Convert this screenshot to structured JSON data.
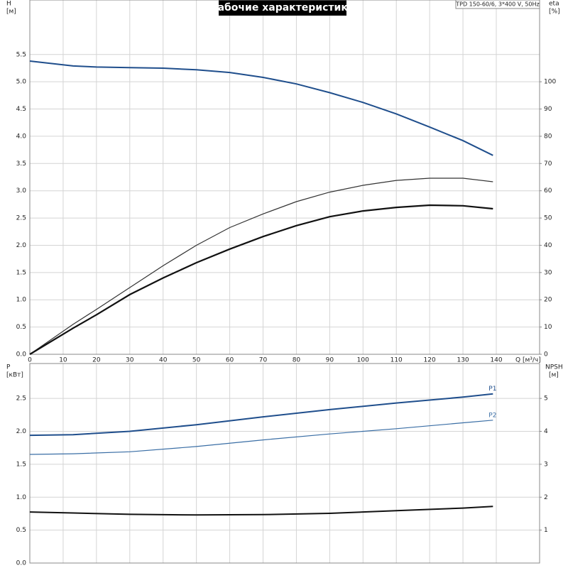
{
  "chart_data": [
    {
      "type": "line",
      "title": "Рабочие характеристики",
      "model": "TPD 150-60/6, 3*400 V, 50Hz",
      "y_label": "H",
      "y_unit": "[м]",
      "y2_label": "eta",
      "y2_unit": "[%]",
      "x_label": "Q [м³/ч]",
      "x": [
        0,
        13,
        20,
        30,
        40,
        50,
        60,
        70,
        80,
        90,
        100,
        110,
        120,
        130,
        139
      ],
      "xlim": [
        0,
        153
      ],
      "xticks": [
        0,
        10,
        20,
        30,
        40,
        50,
        60,
        70,
        80,
        90,
        100,
        110,
        120,
        130,
        140
      ],
      "ylim": [
        0,
        6.5
      ],
      "yticks": [
        {
          "value": 0,
          "label": "0.0"
        },
        0.5,
        {
          "value": 1,
          "label": "1.0"
        },
        1.5,
        {
          "value": 2,
          "label": "2.0"
        },
        2.5,
        {
          "value": 3,
          "label": "3.0"
        },
        3.5,
        {
          "value": 4,
          "label": "4.0"
        },
        4.5,
        {
          "value": 5,
          "label": "5.0"
        },
        5.5
      ],
      "y2lim": [
        0,
        130
      ],
      "y2ticks": [
        0,
        10,
        20,
        30,
        40,
        50,
        60,
        70,
        80,
        90,
        100
      ],
      "grid": true,
      "series": [
        {
          "color": "#1f4e8c",
          "line_width": 2,
          "values": [
            5.38,
            5.29,
            5.27,
            5.26,
            5.25,
            5.22,
            5.17,
            5.08,
            4.96,
            4.8,
            4.62,
            4.41,
            4.17,
            3.92,
            3.65
          ]
        },
        {
          "color": "#333333",
          "line_width": 1.2,
          "axis": "y2",
          "values": [
            0,
            11,
            16.5,
            24.5,
            32.5,
            40,
            46.5,
            51.5,
            56,
            59.5,
            62,
            63.8,
            64.6,
            64.6,
            63.3
          ]
        },
        {
          "color": "#111111",
          "line_width": 2.2,
          "axis": "y2",
          "values": [
            0,
            9.6,
            14.5,
            21.9,
            28,
            33.6,
            38.6,
            43.2,
            47.2,
            50.5,
            52.6,
            53.9,
            54.7,
            54.5,
            53.4
          ]
        }
      ]
    },
    {
      "type": "line",
      "y_label": "P",
      "y_unit": "[кВт]",
      "y2_label": "NPSH",
      "y2_unit": "[м]",
      "x": [
        0,
        13,
        30,
        50,
        70,
        90,
        110,
        130,
        139
      ],
      "xlim": [
        0,
        153
      ],
      "xticks": [
        0,
        10,
        20,
        30,
        40,
        50,
        60,
        70,
        80,
        90,
        100,
        110,
        120,
        130,
        140
      ],
      "ylim": [
        0,
        3.03
      ],
      "yticks": [
        {
          "value": 0,
          "label": "0.0"
        },
        0.5,
        {
          "value": 1,
          "label": "1.0"
        },
        1.5,
        {
          "value": 2,
          "label": "2.0"
        },
        2.5
      ],
      "y2lim": [
        0,
        6.06
      ],
      "y2ticks": [
        1,
        2,
        3,
        4,
        5
      ],
      "grid": true,
      "series": [
        {
          "name": "P1",
          "color": "#1f4e8c",
          "line_width": 2,
          "values": [
            1.94,
            1.95,
            2.0,
            2.1,
            2.22,
            2.33,
            2.43,
            2.52,
            2.57
          ]
        },
        {
          "name": "P2",
          "color": "#3a6ea5",
          "line_width": 1.2,
          "values": [
            1.65,
            1.66,
            1.69,
            1.77,
            1.87,
            1.96,
            2.04,
            2.13,
            2.17
          ]
        },
        {
          "color": "#111111",
          "line_width": 2,
          "axis": "y2",
          "values": [
            1.55,
            1.52,
            1.48,
            1.46,
            1.47,
            1.51,
            1.59,
            1.67,
            1.72
          ]
        }
      ]
    }
  ]
}
